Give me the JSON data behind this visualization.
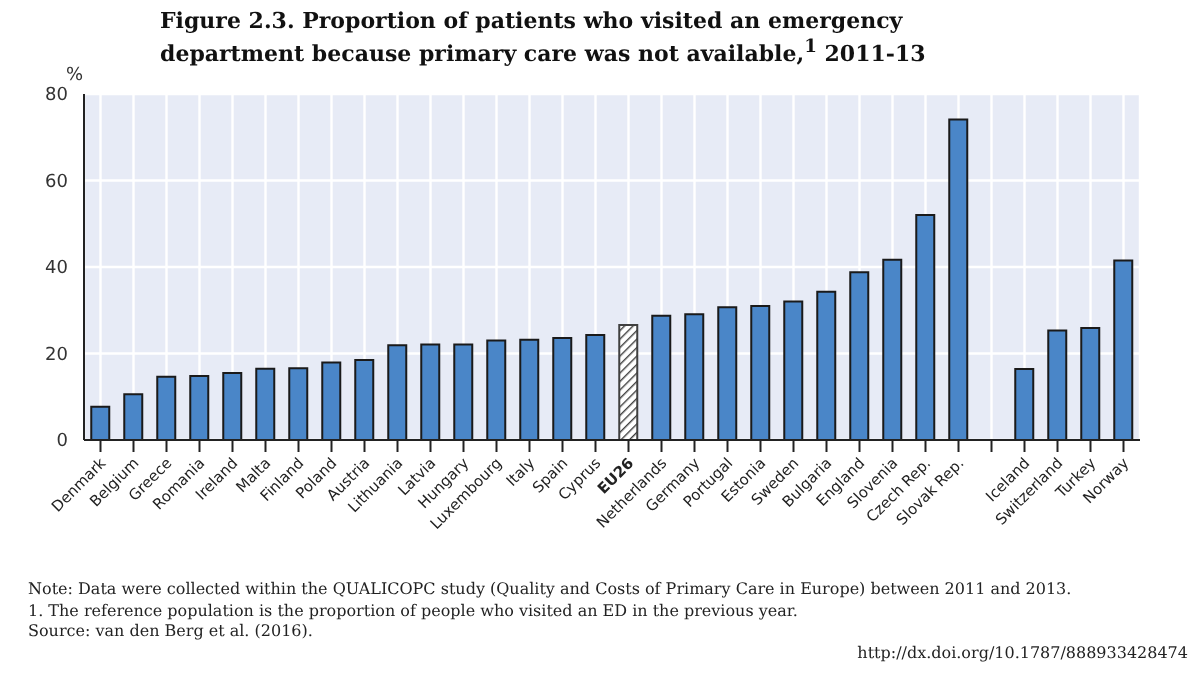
{
  "chart_data": {
    "type": "bar",
    "title": "Figure 2.3. Proportion of patients who visited an emergency department because primary care was not available,$^{1}$ 2011-13",
    "ylabel": "%",
    "categories": [
      "Denmark",
      "Belgium",
      "Greece",
      "Romania",
      "Ireland",
      "Malta",
      "Finland",
      "Poland",
      "Austria",
      "Lithuania",
      "Latvia",
      "Hungary",
      "Luxembourg",
      "Italy",
      "Spain",
      "Cyprus",
      "EU26",
      "Netherlands",
      "Germany",
      "Portugal",
      "Estonia",
      "Sweden",
      "Bulgaria",
      "England",
      "Slovenia",
      "Czech Rep.",
      "Slovak Rep.",
      null,
      "Iceland",
      "Switzerland",
      "Turkey",
      "Norway"
    ],
    "values": [
      7.7,
      10.6,
      14.6,
      14.8,
      15.5,
      16.5,
      16.6,
      17.9,
      18.5,
      21.9,
      22.1,
      22.1,
      23.0,
      23.2,
      23.6,
      24.3,
      26.6,
      28.7,
      29.1,
      30.7,
      31.0,
      32.0,
      34.3,
      38.8,
      41.7,
      52.0,
      74.1,
      null,
      16.4,
      25.3,
      25.9,
      41.5
    ],
    "colors": [
      "#4a86c8",
      "#4a86c8",
      "#4a86c8",
      "#4a86c8",
      "#4a86c8",
      "#4a86c8",
      "#4a86c8",
      "#4a86c8",
      "#4a86c8",
      "#4a86c8",
      "#4a86c8",
      "#4a86c8",
      "#4a86c8",
      "#4a86c8",
      "#4a86c8",
      "#4a86c8",
      "#404040",
      "#4a86c8",
      "#4a86c8",
      "#4a86c8",
      "#4a86c8",
      "#4a86c8",
      "#4a86c8",
      "#4a86c8",
      "#4a86c8",
      "#4a86c8",
      "#4a86c8",
      "#4a86c8",
      "#4a86c8",
      "#4a86c8",
      "#4a86c8",
      "#4a86c8"
    ],
    "ylim": [
      0,
      80
    ],
    "yticks": [
      0,
      20,
      40,
      60,
      80
    ],
    "grid": true,
    "annotations": [
      "Note: Data were collected within the QUALICOPC study (Quality and Costs of Primary Care in Europe) between 2011 and 2013.",
      "1. The reference population is the proportion of people who visited an ED in the previous year.",
      "Source: van den Berg et al. (2016).",
      "http://dx.doi.org/10.1787/888933428474"
    ]
  }
}
